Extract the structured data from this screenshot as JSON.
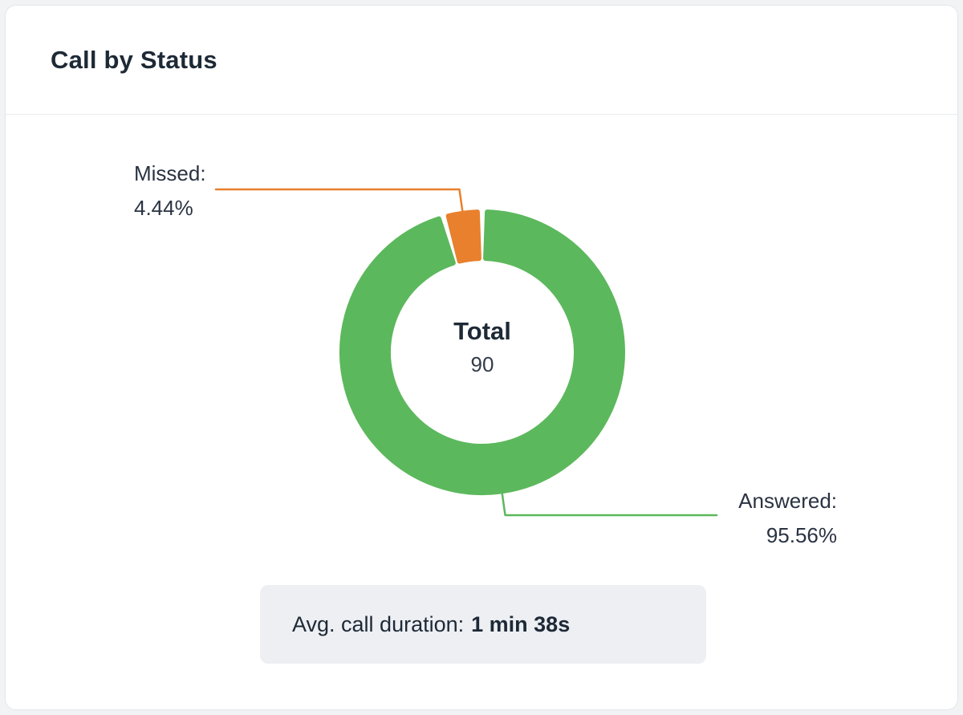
{
  "card": {
    "title": "Call by Status"
  },
  "footer": {
    "label": "Avg. call duration:",
    "value": "1 min 38s"
  },
  "chart_data": {
    "type": "pie",
    "variant": "donut",
    "title": "Call by Status",
    "center": {
      "label": "Total",
      "value": 90
    },
    "total": 90,
    "series": [
      {
        "name": "Answered",
        "value": 86,
        "percent": 95.56,
        "percent_label": "95.56%",
        "callout_label": "Answered:",
        "color": "#5CB85C"
      },
      {
        "name": "Missed",
        "value": 4,
        "percent": 4.44,
        "percent_label": "4.44%",
        "callout_label": "Missed:",
        "color": "#E8802D"
      }
    ],
    "start_angle": "top",
    "direction": "clockwise",
    "legend": "none",
    "labels": "outside-callout-lines"
  }
}
